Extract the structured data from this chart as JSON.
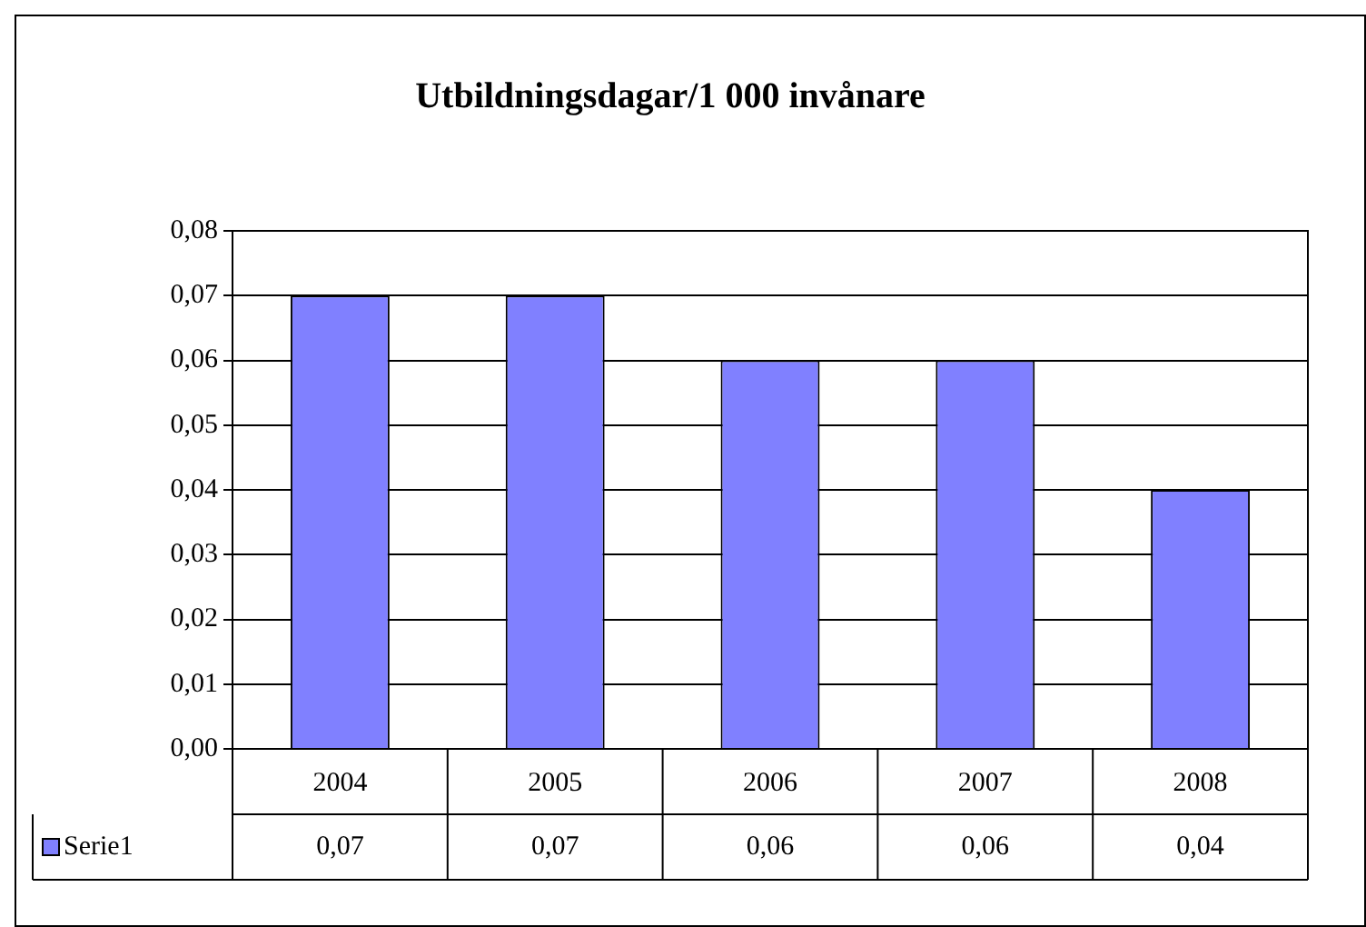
{
  "chart_data": {
    "type": "bar",
    "title": "Utbildningsdagar/1 000 invånare",
    "categories": [
      "2004",
      "2005",
      "2006",
      "2007",
      "2008"
    ],
    "series": [
      {
        "name": "Serie1",
        "color": "#8080ff",
        "values": [
          0.07,
          0.07,
          0.06,
          0.06,
          0.04
        ]
      }
    ],
    "value_labels": [
      "0,07",
      "0,07",
      "0,06",
      "0,06",
      "0,04"
    ],
    "ylim": [
      0,
      0.08
    ],
    "yticks": [
      {
        "value": 0,
        "label": "0,00"
      },
      {
        "value": 0.01,
        "label": "0,01"
      },
      {
        "value": 0.02,
        "label": "0,02"
      },
      {
        "value": 0.03,
        "label": "0,03"
      },
      {
        "value": 0.04,
        "label": "0,04"
      },
      {
        "value": 0.05,
        "label": "0,05"
      },
      {
        "value": 0.06,
        "label": "0,06"
      },
      {
        "value": 0.07,
        "label": "0,07"
      },
      {
        "value": 0.08,
        "label": "0,08"
      }
    ],
    "grid": "y",
    "legend": "bottom"
  }
}
